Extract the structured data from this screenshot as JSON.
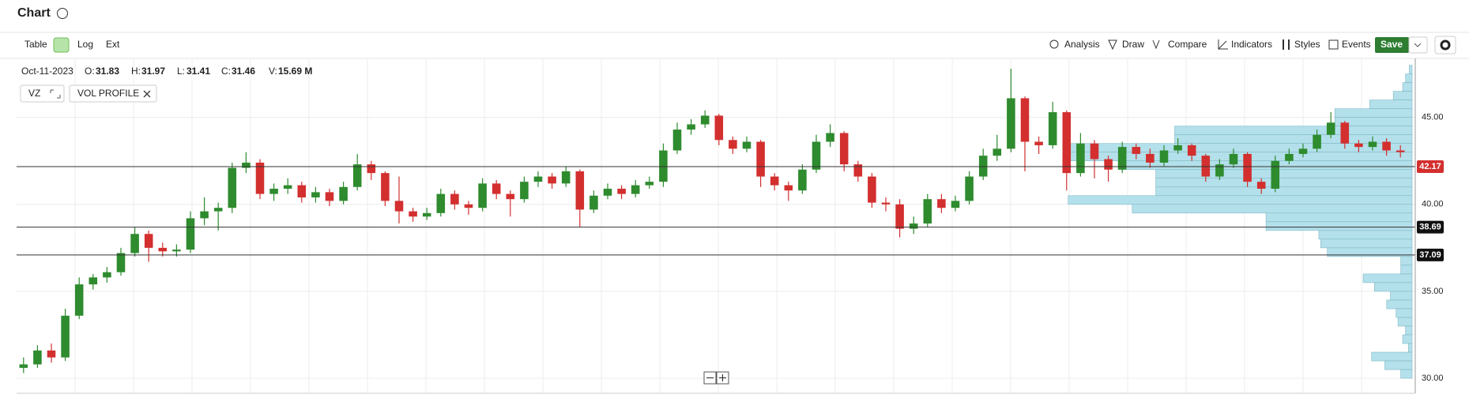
{
  "page": {
    "title": "Chart",
    "toolbar_left": [
      "Table",
      "Log",
      "Ext"
    ],
    "toolbar_right": [
      "Analysis",
      "Draw",
      "Compare",
      "Indicators",
      "Styles",
      "Events"
    ],
    "save": "Save",
    "quote": {
      "date": "Oct-11-2023",
      "open_label": "O:",
      "open": "31.83",
      "high_label": "H:",
      "high": "31.97",
      "low_label": "L:",
      "low": "31.41",
      "close_label": "C:",
      "close": "31.46",
      "volume_label": "V:",
      "volume": "15.69 M"
    },
    "symbol": "VZ",
    "study": "VOL PROFILE"
  },
  "chart_data": {
    "type": "candlestick",
    "up_color": "#2e8b2e",
    "down_color": "#d32f2f",
    "grid": true,
    "ylim": [
      29.14,
      48.39
    ],
    "yticks": [
      {
        "value": 30,
        "label": "30.00"
      },
      {
        "value": 35,
        "label": "35.00"
      },
      {
        "value": 40,
        "label": "40.00"
      },
      {
        "value": 45,
        "label": "45.00"
      }
    ],
    "levels": [
      {
        "value": 42.17,
        "color": "#d32f2f"
      },
      {
        "value": 38.69,
        "color": "#111111"
      },
      {
        "value": 37.09,
        "color": "#111111"
      }
    ],
    "candles": {
      "open": [
        30.6,
        30.8,
        31.6,
        31.2,
        33.6,
        35.4,
        35.8,
        36.1,
        37.2,
        38.3,
        37.5,
        37.3,
        37.4,
        39.2,
        39.6,
        39.8,
        42.1,
        42.4,
        40.6,
        40.9,
        41.1,
        40.4,
        40.7,
        40.2,
        41.0,
        42.3,
        41.8,
        40.2,
        39.6,
        39.3,
        39.5,
        40.6,
        40.0,
        39.8,
        41.2,
        40.6,
        40.3,
        41.3,
        41.6,
        41.2,
        41.9,
        39.7,
        40.5,
        40.9,
        40.6,
        41.1,
        41.3,
        43.1,
        44.3,
        44.6,
        45.1,
        43.7,
        43.2,
        43.6,
        41.6,
        41.1,
        40.8,
        42.0,
        43.6,
        44.1,
        42.3,
        41.6,
        40.1,
        40.0,
        38.6,
        38.9,
        40.3,
        39.8,
        40.2,
        41.6,
        42.8,
        43.2,
        46.1,
        43.6,
        43.4,
        45.3,
        41.8,
        43.5,
        42.6,
        42.0,
        43.3,
        42.9,
        42.4,
        43.1,
        43.4,
        42.8,
        41.6,
        42.3,
        42.9,
        41.3,
        40.9,
        42.5,
        42.9,
        43.2,
        44.0,
        44.7,
        43.5,
        43.3,
        43.6,
        43.1
      ],
      "high": [
        31.2,
        31.9,
        32.0,
        34.0,
        35.8,
        36.0,
        36.4,
        37.5,
        38.7,
        38.5,
        37.8,
        37.7,
        39.6,
        40.4,
        40.1,
        42.4,
        43.0,
        42.6,
        41.2,
        41.5,
        41.3,
        41.0,
        40.9,
        41.3,
        42.9,
        42.5,
        41.9,
        41.6,
        39.8,
        39.8,
        40.9,
        40.8,
        40.2,
        41.5,
        41.4,
        40.8,
        41.6,
        41.9,
        41.8,
        42.2,
        42.0,
        40.8,
        41.2,
        41.1,
        41.4,
        41.6,
        43.5,
        44.7,
        44.9,
        45.4,
        45.2,
        43.9,
        43.9,
        43.7,
        41.8,
        41.3,
        42.3,
        44.0,
        44.6,
        44.2,
        42.5,
        41.8,
        40.4,
        40.3,
        39.3,
        40.6,
        40.6,
        40.5,
        41.9,
        43.2,
        44.0,
        47.8,
        46.2,
        43.9,
        45.9,
        45.4,
        44.1,
        43.7,
        42.8,
        43.6,
        43.5,
        43.2,
        43.4,
        43.8,
        43.5,
        42.9,
        42.6,
        43.2,
        43.0,
        41.5,
        42.8,
        43.2,
        43.5,
        44.3,
        45.3,
        44.8,
        43.7,
        43.9,
        43.8,
        43.4
      ],
      "low": [
        30.3,
        30.6,
        30.9,
        31.0,
        33.4,
        35.1,
        35.5,
        35.9,
        37.0,
        36.7,
        37.0,
        37.0,
        37.2,
        38.8,
        38.5,
        39.5,
        41.8,
        40.3,
        40.2,
        40.6,
        40.1,
        40.1,
        39.9,
        40.0,
        40.8,
        41.4,
        39.9,
        38.9,
        39.0,
        39.1,
        39.3,
        39.7,
        39.4,
        39.6,
        40.3,
        39.3,
        40.1,
        41.0,
        40.9,
        41.0,
        38.7,
        39.5,
        40.3,
        40.3,
        40.4,
        40.9,
        41.0,
        42.9,
        44.0,
        44.4,
        43.4,
        42.9,
        43.0,
        41.0,
        40.8,
        40.2,
        40.6,
        41.8,
        43.3,
        41.9,
        41.3,
        39.8,
        39.6,
        38.1,
        38.3,
        38.7,
        39.5,
        39.6,
        40.0,
        41.4,
        42.5,
        43.0,
        41.9,
        42.9,
        43.2,
        40.8,
        41.6,
        41.5,
        41.3,
        41.8,
        42.6,
        42.1,
        42.2,
        42.9,
        42.5,
        41.3,
        41.4,
        42.1,
        41.0,
        40.6,
        40.7,
        42.3,
        42.7,
        43.0,
        43.8,
        43.2,
        43.0,
        43.1,
        42.8,
        42.7
      ],
      "close": [
        30.8,
        31.6,
        31.2,
        33.6,
        35.4,
        35.8,
        36.1,
        37.2,
        38.3,
        37.5,
        37.3,
        37.4,
        39.2,
        39.6,
        39.8,
        42.1,
        42.4,
        40.6,
        40.9,
        41.1,
        40.4,
        40.7,
        40.2,
        41.0,
        42.3,
        41.8,
        40.2,
        39.6,
        39.3,
        39.5,
        40.6,
        40.0,
        39.8,
        41.2,
        40.6,
        40.3,
        41.3,
        41.6,
        41.2,
        41.9,
        39.7,
        40.5,
        40.9,
        40.6,
        41.1,
        41.3,
        43.1,
        44.3,
        44.6,
        45.1,
        43.7,
        43.2,
        43.6,
        41.6,
        41.1,
        40.8,
        42.0,
        43.6,
        44.1,
        42.3,
        41.6,
        40.1,
        40.0,
        38.6,
        38.9,
        40.3,
        39.8,
        40.2,
        41.6,
        42.8,
        43.2,
        46.1,
        43.6,
        43.4,
        45.3,
        41.8,
        43.5,
        42.6,
        42.0,
        43.3,
        42.9,
        42.4,
        43.1,
        43.4,
        42.8,
        41.6,
        42.3,
        42.9,
        41.3,
        40.9,
        42.5,
        42.9,
        43.2,
        44.0,
        44.7,
        43.5,
        43.3,
        43.6,
        43.1,
        43.0
      ]
    },
    "volume_profile": {
      "color": "#b3e0ea",
      "price": [
        47.75,
        47.25,
        46.75,
        46.25,
        45.75,
        45.25,
        44.75,
        44.25,
        43.75,
        43.25,
        42.75,
        42.25,
        41.75,
        41.25,
        40.75,
        40.25,
        39.75,
        39.25,
        38.75,
        38.25,
        37.75,
        37.25,
        36.75,
        36.25,
        35.75,
        35.25,
        34.75,
        34.25,
        33.75,
        33.25,
        32.75,
        32.25,
        31.75,
        31.25,
        30.75,
        30.25
      ],
      "values": [
        3,
        7,
        10,
        20,
        45,
        82,
        82,
        252,
        252,
        369,
        369,
        312,
        272,
        272,
        272,
        365,
        297,
        155,
        155,
        99,
        97,
        90,
        12,
        12,
        52,
        40,
        23,
        27,
        17,
        15,
        7,
        10,
        4,
        43,
        29,
        12
      ]
    }
  }
}
